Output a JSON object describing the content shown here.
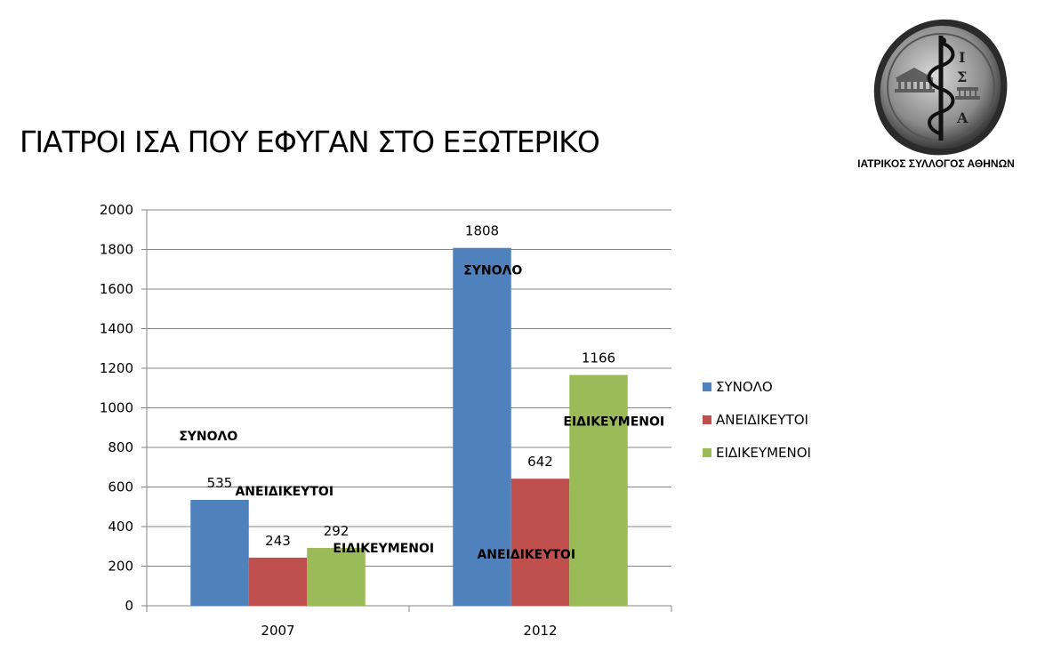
{
  "title": "ΓΙΑΤΡΟΙ ΙΣΑ ΠΟΥ ΕΦΥΓΑΝ ΣΤΟ ΕΞΩΤΕΡΙΚΟ",
  "organization": "ΙΑΤΡΙΚΟΣ ΣΥΛΛΟΓΟΣ ΑΘΗΝΩΝ",
  "seal_letters": [
    "Ι",
    "Σ",
    "Α"
  ],
  "chart_data": {
    "type": "bar",
    "title": "",
    "xlabel": "",
    "ylabel": "",
    "categories": [
      "2007",
      "2012"
    ],
    "ylim": [
      0,
      2000
    ],
    "yticks": [
      0,
      200,
      400,
      600,
      800,
      1000,
      1200,
      1400,
      1600,
      1800,
      2000
    ],
    "grid": true,
    "legend_position": "right",
    "series": [
      {
        "name": "ΣΥΝΟΛΟ",
        "color": "#4F81BD",
        "values": [
          535,
          1808
        ]
      },
      {
        "name": "ΑΝΕΙΔΙΚΕΥΤΟΙ",
        "color": "#C0504D",
        "values": [
          243,
          642
        ]
      },
      {
        "name": "ΕΙΔΙΚΕΥΜΕΝΟΙ",
        "color": "#9BBB59",
        "values": [
          292,
          1166
        ]
      }
    ],
    "annotations": [
      {
        "text": "ΣΥΝΟΛΟ",
        "category": "2007",
        "series": "ΣΥΝΟΛΟ"
      },
      {
        "text": "ΑΝΕΙΔΙΚΕΥΤΟΙ",
        "category": "2007",
        "series": "ΑΝΕΙΔΙΚΕΥΤΟΙ"
      },
      {
        "text": "ΕΙΔΙΚΕΥΜΕΝΟΙ",
        "category": "2007",
        "series": "ΕΙΔΙΚΕΥΜΕΝΟΙ"
      },
      {
        "text": "ΣΥΝΟΛΟ",
        "category": "2012",
        "series": "ΣΥΝΟΛΟ"
      },
      {
        "text": "ΑΝΕΙΔΙΚΕΥΤΟΙ",
        "category": "2012",
        "series": "ΑΝΕΙΔΙΚΕΥΤΟΙ"
      },
      {
        "text": "ΕΙΔΙΚΕΥΜΕΝΟΙ",
        "category": "2012",
        "series": "ΕΙΔΙΚΕΥΜΕΝΟΙ"
      }
    ]
  }
}
